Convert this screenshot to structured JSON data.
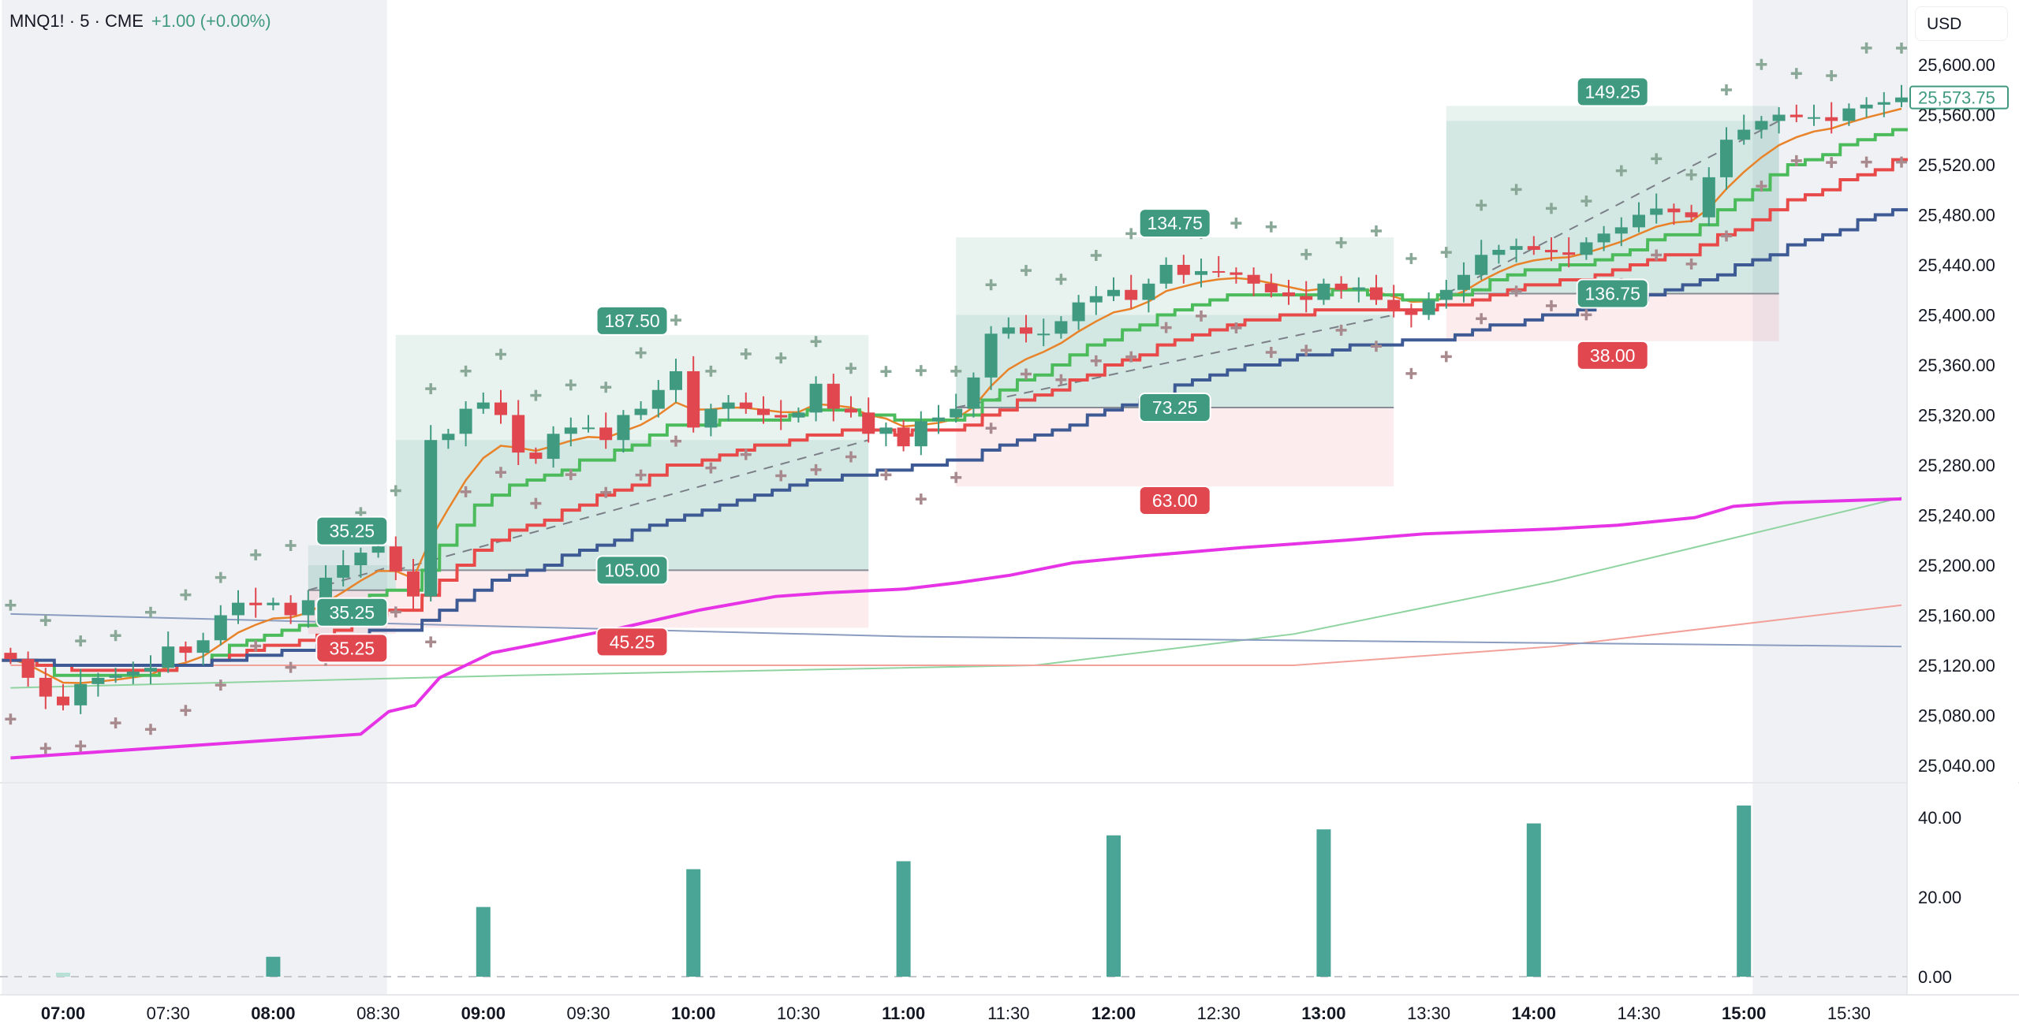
{
  "header": {
    "symbol": "MNQ1! · 5 · CME",
    "change": "+1.00 (+0.00%)"
  },
  "currency_button": "USD",
  "chart_data": {
    "type": "candlestick",
    "symbol": "MNQ1!",
    "interval_minutes": 5,
    "first_bar_time": "06:45",
    "closes": [
      25125,
      25110,
      25095,
      25088,
      25105,
      25110,
      25112,
      25115,
      25118,
      25135,
      25130,
      25140,
      25160,
      25170,
      25168,
      25170,
      25160,
      25172,
      25190,
      25200,
      25210,
      25215,
      25195,
      25175,
      25300,
      25305,
      25325,
      25330,
      25320,
      25290,
      25285,
      25305,
      25310,
      25310,
      25300,
      25320,
      25325,
      25340,
      25355,
      25310,
      25325,
      25330,
      25325,
      25320,
      25318,
      25322,
      25345,
      25325,
      25322,
      25305,
      25310,
      25295,
      25315,
      25318,
      25325,
      25350,
      25385,
      25390,
      25385,
      25385,
      25395,
      25410,
      25415,
      25420,
      25412,
      25425,
      25440,
      25432,
      25435,
      25434,
      25432,
      25425,
      25418,
      25415,
      25412,
      25425,
      25420,
      25422,
      25412,
      25405,
      25400,
      25412,
      25420,
      25432,
      25448,
      25452,
      25455,
      25452,
      25450,
      25448,
      25458,
      25465,
      25470,
      25480,
      25485,
      25482,
      25478,
      25510,
      25540,
      25548,
      25555,
      25560,
      25558,
      25558,
      25555,
      25565,
      25568,
      25570,
      25573.75
    ],
    "first_open": 25130,
    "last_price": "25,573.75",
    "price_axis": {
      "min": 25040,
      "max": 25600,
      "ticks": [
        "25,600.00",
        "25,560.00",
        "25,520.00",
        "25,480.00",
        "25,440.00",
        "25,400.00",
        "25,360.00",
        "25,320.00",
        "25,280.00",
        "25,240.00",
        "25,200.00",
        "25,160.00",
        "25,120.00",
        "25,080.00",
        "25,040.00"
      ]
    },
    "time_axis": [
      {
        "label": "07:00",
        "bold": true
      },
      {
        "label": "07:30",
        "bold": false
      },
      {
        "label": "08:00",
        "bold": true
      },
      {
        "label": "08:30",
        "bold": false
      },
      {
        "label": "09:00",
        "bold": true
      },
      {
        "label": "09:30",
        "bold": false
      },
      {
        "label": "10:00",
        "bold": true
      },
      {
        "label": "10:30",
        "bold": false
      },
      {
        "label": "11:00",
        "bold": true
      },
      {
        "label": "11:30",
        "bold": false
      },
      {
        "label": "12:00",
        "bold": true
      },
      {
        "label": "12:30",
        "bold": false
      },
      {
        "label": "13:00",
        "bold": true
      },
      {
        "label": "13:30",
        "bold": false
      },
      {
        "label": "14:00",
        "bold": true
      },
      {
        "label": "14:30",
        "bold": false
      },
      {
        "label": "15:00",
        "bold": true
      },
      {
        "label": "15:30",
        "bold": false
      }
    ],
    "session_shading": [
      {
        "from": "06:45",
        "to": "08:35"
      },
      {
        "from": "15:05",
        "to": "15:50"
      }
    ],
    "moving_averages": [
      {
        "name": "fast",
        "color": "#e8832a",
        "length": 6,
        "style": "line"
      },
      {
        "name": "green-step",
        "color": "#4cbb5c",
        "length": 12,
        "style": "step"
      },
      {
        "name": "red-step",
        "color": "#e84a4a",
        "length": 22,
        "style": "step"
      },
      {
        "name": "navy-step",
        "color": "#3e5a94",
        "length": 40,
        "style": "step"
      }
    ],
    "vwap": {
      "color": "#e633e6",
      "points": [
        [
          0,
          25046
        ],
        [
          20.0,
          25065
        ],
        [
          21.6,
          25083
        ],
        [
          23.1,
          25088
        ],
        [
          24.5,
          25110
        ],
        [
          27.5,
          25130
        ],
        [
          31.2,
          25140
        ],
        [
          34.9,
          25150
        ],
        [
          39.3,
          25164
        ],
        [
          43.7,
          25175
        ],
        [
          46.7,
          25178
        ],
        [
          51.1,
          25181
        ],
        [
          54.1,
          25186
        ],
        [
          57.1,
          25192
        ],
        [
          60.7,
          25202
        ],
        [
          64.4,
          25207
        ],
        [
          70.3,
          25214
        ],
        [
          76.3,
          25220
        ],
        [
          80.7,
          25225
        ],
        [
          88.1,
          25229
        ],
        [
          91.8,
          25232
        ],
        [
          96.2,
          25238
        ],
        [
          98.4,
          25247
        ],
        [
          101.3,
          25250
        ],
        [
          108,
          25253
        ]
      ]
    },
    "long_mas": [
      {
        "color": "#8fd4a0",
        "points": [
          [
            0,
            25102
          ],
          [
            29,
            25112
          ],
          [
            58.5,
            25120
          ],
          [
            73.3,
            25145
          ],
          [
            88.1,
            25187
          ],
          [
            108,
            25254
          ]
        ]
      },
      {
        "color": "#f2a09a",
        "points": [
          [
            0,
            25120
          ],
          [
            73.3,
            25120
          ],
          [
            88.1,
            25135
          ],
          [
            108,
            25168
          ]
        ]
      },
      {
        "color": "#8a9cc0",
        "points": [
          [
            0,
            25161
          ],
          [
            51.1,
            25143
          ],
          [
            108,
            25135
          ]
        ]
      }
    ],
    "positions": [
      {
        "start": "08:10",
        "end": "08:35",
        "target": 25216,
        "entry": 25180,
        "stop": 25145,
        "filled_to": 25200,
        "target_label": "35.25",
        "entry_label": "35.25",
        "stop_label": "35.25"
      },
      {
        "start": "08:35",
        "end": "10:50",
        "target": 25384,
        "entry": 25196,
        "stop": 25150,
        "filled_to": 25300,
        "target_label": "187.50",
        "entry_label": "105.00",
        "stop_label": "45.25"
      },
      {
        "start": "11:15",
        "end": "13:20",
        "target": 25462,
        "entry": 25326,
        "stop": 25263,
        "filled_to": 25400,
        "target_label": "134.75",
        "entry_label": "73.25",
        "stop_label": "63.00"
      },
      {
        "start": "13:35",
        "end": "15:10",
        "target": 25567,
        "entry": 25417,
        "stop": 25379,
        "filled_to": 25555,
        "target_label": "149.25",
        "entry_label": "136.75",
        "stop_label": "38.00"
      }
    ],
    "volume": {
      "ticks": [
        "40.00",
        "20.00",
        "0.00"
      ],
      "bars": [
        {
          "time": "07:00",
          "value": 1
        },
        {
          "time": "08:00",
          "value": 5
        },
        {
          "time": "09:00",
          "value": 17.5
        },
        {
          "time": "10:00",
          "value": 27
        },
        {
          "time": "11:00",
          "value": 29
        },
        {
          "time": "12:00",
          "value": 35.5
        },
        {
          "time": "13:00",
          "value": 37
        },
        {
          "time": "14:00",
          "value": 38.5
        },
        {
          "time": "15:00",
          "value": 43
        }
      ]
    },
    "colors": {
      "up": "#3f9a80",
      "down": "#e0474f",
      "cross_up": "#8aa897",
      "cross_down": "#a88a8e"
    }
  }
}
